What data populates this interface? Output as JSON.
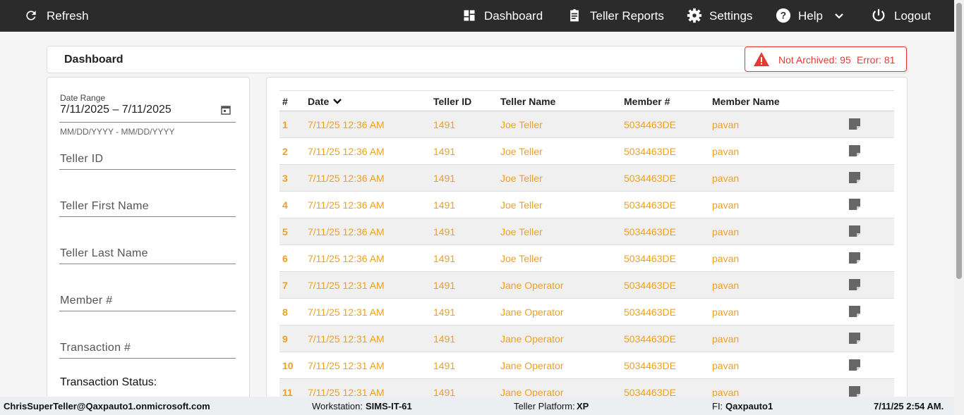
{
  "nav": {
    "refresh": "Refresh",
    "dashboard": "Dashboard",
    "teller_reports": "Teller Reports",
    "settings": "Settings",
    "help": "Help",
    "logout": "Logout"
  },
  "header": {
    "title": "Dashboard",
    "not_archived": "Not Archived: 95",
    "error": "Error: 81"
  },
  "filters": {
    "date_range_label": "Date Range",
    "date_range_value": "7/11/2025 – 7/11/2025",
    "date_hint": "MM/DD/YYYY - MM/DD/YYYY",
    "teller_id": "Teller ID",
    "teller_first_name": "Teller First Name",
    "teller_last_name": "Teller Last Name",
    "member_no": "Member #",
    "transaction_no": "Transaction #",
    "transaction_status": "Transaction Status:"
  },
  "table": {
    "columns": [
      "#",
      "Date",
      "Teller ID",
      "Teller Name",
      "Member #",
      "Member Name"
    ],
    "rows": [
      [
        "1",
        "7/11/25 12:36 AM",
        "1491",
        "Joe Teller",
        "5034463DE",
        "pavan"
      ],
      [
        "2",
        "7/11/25 12:36 AM",
        "1491",
        "Joe Teller",
        "5034463DE",
        "pavan"
      ],
      [
        "3",
        "7/11/25 12:36 AM",
        "1491",
        "Joe Teller",
        "5034463DE",
        "pavan"
      ],
      [
        "4",
        "7/11/25 12:36 AM",
        "1491",
        "Joe Teller",
        "5034463DE",
        "pavan"
      ],
      [
        "5",
        "7/11/25 12:36 AM",
        "1491",
        "Joe Teller",
        "5034463DE",
        "pavan"
      ],
      [
        "6",
        "7/11/25 12:36 AM",
        "1491",
        "Joe Teller",
        "5034463DE",
        "pavan"
      ],
      [
        "7",
        "7/11/25 12:31 AM",
        "1491",
        "Jane Operator",
        "5034463DE",
        "pavan"
      ],
      [
        "8",
        "7/11/25 12:31 AM",
        "1491",
        "Jane Operator",
        "5034463DE",
        "pavan"
      ],
      [
        "9",
        "7/11/25 12:31 AM",
        "1491",
        "Jane Operator",
        "5034463DE",
        "pavan"
      ],
      [
        "10",
        "7/11/25 12:31 AM",
        "1491",
        "Jane Operator",
        "5034463DE",
        "pavan"
      ],
      [
        "11",
        "7/11/25 12:31 AM",
        "1491",
        "Jane Operator",
        "5034463DE",
        "pavan"
      ]
    ]
  },
  "footer": {
    "user": "ChrisSuperTeller@Qaxpauto1.onmicrosoft.com",
    "workstation_label": "Workstation:",
    "workstation": "SIMS-IT-61",
    "platform_label": "Teller Platform:",
    "platform": "XP",
    "fi_label": "FI:",
    "fi": "Qaxpauto1",
    "datetime": "7/11/25 2:54 AM."
  }
}
